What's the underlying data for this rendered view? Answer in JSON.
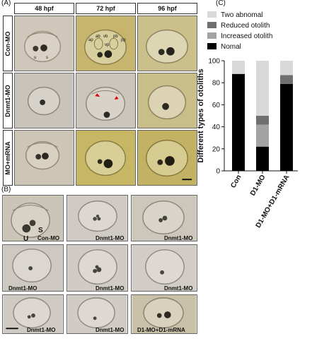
{
  "panel_a": {
    "letter": "(A)",
    "columns": [
      "48 hpf",
      "72 hpf",
      "96 hpf"
    ],
    "rows": [
      "Con-MO",
      "Dnmt1-MO",
      "MO+mRNA"
    ],
    "labels": {
      "u": "u",
      "s": "s",
      "ap": "ap",
      "ab": "ab",
      "vb": "vb",
      "pb": "pb",
      "pp": "pp",
      "vp": "vp"
    }
  },
  "panel_b": {
    "letter": "(B)",
    "captions": [
      "Con-MO",
      "Dnmt1-MO",
      "Dnmt1-MO",
      "Dnmt1-MO",
      "Dnmt1-MO",
      "Dnmt1-MO",
      "Dnmt1-MO",
      "Dnmt1-MO",
      "D1-MO+D1-mRNA"
    ],
    "u_label": "U",
    "s_label": "S"
  },
  "panel_c": {
    "letter": "(C)"
  },
  "chart_data": {
    "type": "bar",
    "stacked": true,
    "categories": [
      "Con",
      "D1-MO",
      "D1-MO+D1-mRNA"
    ],
    "series": [
      {
        "name": "Nomal",
        "values": [
          88,
          22,
          79
        ],
        "color": "#000000"
      },
      {
        "name": "Increased otolith",
        "values": [
          0,
          20,
          0
        ],
        "color": "#a3a3a3"
      },
      {
        "name": "Reduced otolith",
        "values": [
          0,
          8,
          8
        ],
        "color": "#6f6f6f"
      },
      {
        "name": "Two abnomal",
        "values": [
          12,
          50,
          13
        ],
        "color": "#d9d9d9"
      }
    ],
    "legend_order": [
      "Two abnomal",
      "Reduced otolith",
      "Increased otolith",
      "Nomal"
    ],
    "ylabel": "Different types of otoliths",
    "xlabel": "",
    "ylim": [
      0,
      100
    ],
    "yticks": [
      0,
      20,
      40,
      60,
      80,
      100
    ],
    "legend_position": "top"
  },
  "colors": {
    "micro_bg_plain": "#cfc8bb",
    "micro_bg_yellow": "#c9b870",
    "arrow_red": "#e00000"
  }
}
